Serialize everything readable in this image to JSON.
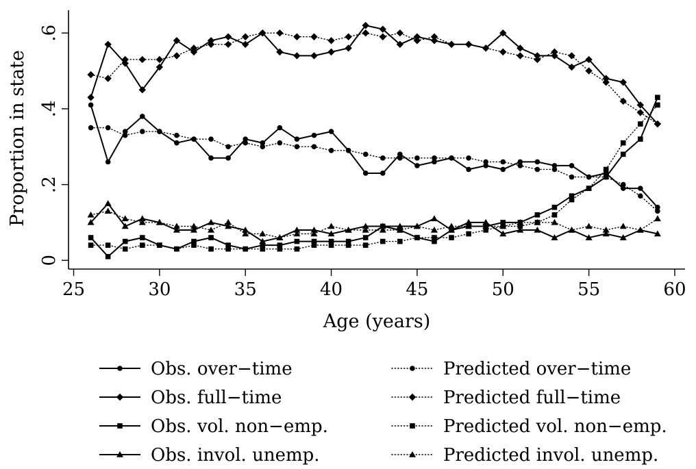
{
  "chart_data": {
    "type": "line",
    "title": "",
    "xlabel": "Age (years)",
    "ylabel": "Proportion in state",
    "xlim": [
      24.7,
      60.6
    ],
    "ylim": [
      -0.023,
      0.66
    ],
    "xticks": [
      25,
      30,
      35,
      40,
      45,
      50,
      55,
      60
    ],
    "xtick_labels": [
      "25",
      "30",
      "35",
      "40",
      "45",
      "50",
      "55",
      "60"
    ],
    "yticks": [
      0,
      0.2,
      0.4,
      0.6
    ],
    "ytick_labels": [
      "0",
      ".2",
      ".4",
      ".6"
    ],
    "grid": false,
    "legend_position": "bottom",
    "x": [
      26,
      27,
      28,
      29,
      30,
      31,
      32,
      33,
      34,
      35,
      36,
      37,
      38,
      39,
      40,
      41,
      42,
      43,
      44,
      45,
      46,
      47,
      48,
      49,
      50,
      51,
      52,
      53,
      54,
      55,
      56,
      57,
      58,
      59
    ],
    "series": [
      {
        "name": "Obs. over−time",
        "line": "solid",
        "marker": "circle",
        "values": [
          0.41,
          0.26,
          0.34,
          0.38,
          0.34,
          0.31,
          0.32,
          0.27,
          0.27,
          0.32,
          0.31,
          0.35,
          0.32,
          0.33,
          0.34,
          0.29,
          0.23,
          0.23,
          0.28,
          0.25,
          0.26,
          0.27,
          0.24,
          0.25,
          0.24,
          0.26,
          0.26,
          0.25,
          0.25,
          0.22,
          0.23,
          0.19,
          0.19,
          0.14
        ]
      },
      {
        "name": "Obs. full−time",
        "line": "solid",
        "marker": "diamond",
        "values": [
          0.43,
          0.57,
          0.52,
          0.45,
          0.51,
          0.58,
          0.55,
          0.58,
          0.59,
          0.57,
          0.6,
          0.55,
          0.54,
          0.54,
          0.55,
          0.56,
          0.62,
          0.61,
          0.57,
          0.59,
          0.58,
          0.57,
          0.57,
          0.56,
          0.6,
          0.56,
          0.54,
          0.54,
          0.51,
          0.53,
          0.48,
          0.47,
          0.41,
          0.36
        ]
      },
      {
        "name": "Obs. vol. non−emp.",
        "line": "solid",
        "marker": "square",
        "values": [
          0.06,
          0.01,
          0.05,
          0.06,
          0.04,
          0.03,
          0.05,
          0.06,
          0.04,
          0.03,
          0.04,
          0.04,
          0.05,
          0.05,
          0.05,
          0.05,
          0.06,
          0.09,
          0.08,
          0.06,
          0.05,
          0.08,
          0.09,
          0.09,
          0.1,
          0.1,
          0.12,
          0.14,
          0.17,
          0.19,
          0.22,
          0.28,
          0.32,
          0.43
        ]
      },
      {
        "name": "Obs. invol. unemp.",
        "line": "solid",
        "marker": "triangle",
        "values": [
          0.1,
          0.15,
          0.09,
          0.11,
          0.1,
          0.08,
          0.08,
          0.1,
          0.09,
          0.08,
          0.05,
          0.06,
          0.08,
          0.08,
          0.07,
          0.08,
          0.09,
          0.09,
          0.09,
          0.09,
          0.11,
          0.08,
          0.1,
          0.1,
          0.07,
          0.08,
          0.08,
          0.06,
          0.08,
          0.06,
          0.07,
          0.06,
          0.08,
          0.07
        ]
      },
      {
        "name": "Predicted over−time",
        "line": "dotted",
        "marker": "circle",
        "values": [
          0.35,
          0.35,
          0.33,
          0.34,
          0.34,
          0.33,
          0.32,
          0.32,
          0.3,
          0.31,
          0.3,
          0.31,
          0.3,
          0.3,
          0.29,
          0.29,
          0.28,
          0.27,
          0.27,
          0.27,
          0.27,
          0.27,
          0.27,
          0.26,
          0.26,
          0.25,
          0.24,
          0.24,
          0.22,
          0.22,
          0.22,
          0.2,
          0.17,
          0.13
        ]
      },
      {
        "name": "Predicted full−time",
        "line": "dotted",
        "marker": "diamond",
        "values": [
          0.49,
          0.48,
          0.53,
          0.53,
          0.53,
          0.54,
          0.56,
          0.57,
          0.57,
          0.59,
          0.6,
          0.6,
          0.59,
          0.59,
          0.58,
          0.59,
          0.6,
          0.59,
          0.6,
          0.58,
          0.59,
          0.57,
          0.57,
          0.56,
          0.55,
          0.54,
          0.53,
          0.55,
          0.54,
          0.5,
          0.47,
          0.42,
          0.39,
          0.36
        ]
      },
      {
        "name": "Predicted vol. non−emp.",
        "line": "dotted",
        "marker": "square",
        "values": [
          0.04,
          0.04,
          0.03,
          0.04,
          0.04,
          0.03,
          0.04,
          0.03,
          0.03,
          0.03,
          0.03,
          0.03,
          0.03,
          0.04,
          0.04,
          0.04,
          0.04,
          0.05,
          0.05,
          0.06,
          0.06,
          0.06,
          0.07,
          0.08,
          0.09,
          0.09,
          0.1,
          0.12,
          0.16,
          0.19,
          0.24,
          0.31,
          0.36,
          0.41
        ]
      },
      {
        "name": "Predicted invol. unemp.",
        "line": "dotted",
        "marker": "triangle",
        "values": [
          0.12,
          0.13,
          0.11,
          0.1,
          0.1,
          0.09,
          0.09,
          0.08,
          0.1,
          0.07,
          0.07,
          0.06,
          0.07,
          0.07,
          0.09,
          0.08,
          0.08,
          0.08,
          0.08,
          0.09,
          0.08,
          0.09,
          0.09,
          0.09,
          0.09,
          0.1,
          0.1,
          0.1,
          0.08,
          0.09,
          0.08,
          0.09,
          0.08,
          0.11
        ]
      }
    ]
  }
}
